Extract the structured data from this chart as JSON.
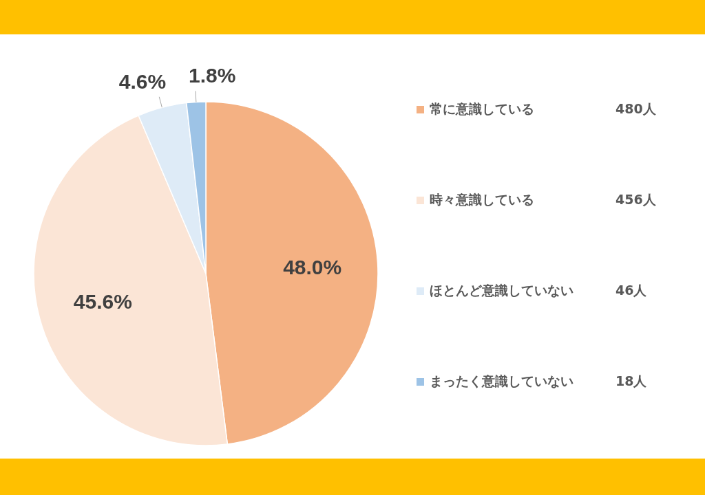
{
  "chart_data": {
    "type": "pie",
    "categories": [
      "常に意識している",
      "時々意識している",
      "ほとんど意識していない",
      "まったく意識していない"
    ],
    "values": [
      48.0,
      45.6,
      4.6,
      1.8
    ],
    "value_labels": [
      "48.0%",
      "45.6%",
      "4.6%",
      "1.8%"
    ],
    "colors": [
      "#f4b183",
      "#fbe5d6",
      "#deebf7",
      "#9dc3e6"
    ],
    "annotations": [
      "480人",
      "456人",
      "46人",
      "18人"
    ],
    "legend": "right"
  }
}
